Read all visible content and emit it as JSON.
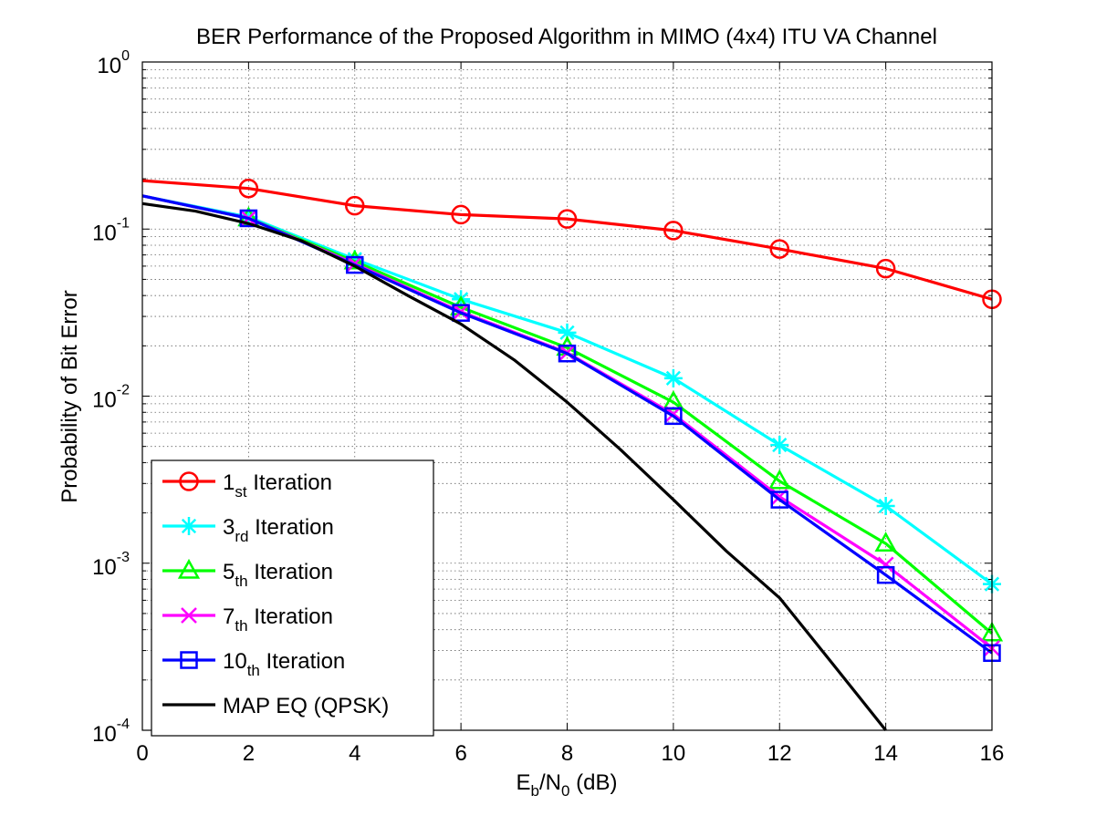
{
  "chart_data": {
    "type": "line",
    "title": "BER Performance of the Proposed Algorithm in MIMO (4x4) ITU VA Channel",
    "xlabel": {
      "base": "E",
      "sub1": "b",
      "mid": "/N",
      "sub2": "0",
      "tail": " (dB)"
    },
    "ylabel": "Probability of Bit Error",
    "xlim": [
      0,
      16
    ],
    "ylim": [
      0.0001,
      1
    ],
    "yscale": "log",
    "grid": true,
    "legend_position": "bottom-left",
    "x_ticks": [
      {
        "value": 0,
        "label": "0"
      },
      {
        "value": 2,
        "label": "2"
      },
      {
        "value": 4,
        "label": "4"
      },
      {
        "value": 6,
        "label": "6"
      },
      {
        "value": 8,
        "label": "8"
      },
      {
        "value": 10,
        "label": "10"
      },
      {
        "value": 12,
        "label": "12"
      },
      {
        "value": 14,
        "label": "14"
      },
      {
        "value": 16,
        "label": "16"
      }
    ],
    "y_ticks": [
      {
        "value": 1,
        "base": "10",
        "exp": "0"
      },
      {
        "value": 0.1,
        "base": "10",
        "exp": "-1"
      },
      {
        "value": 0.01,
        "base": "10",
        "exp": "-2"
      },
      {
        "value": 0.001,
        "base": "10",
        "exp": "-3"
      },
      {
        "value": 0.0001,
        "base": "10",
        "exp": "-4"
      }
    ],
    "series": [
      {
        "legend_main": "1",
        "legend_sub": "st",
        "legend_tail": " Iteration",
        "color": "#ff0000",
        "marker": "circle",
        "x": [
          0,
          2,
          4,
          6,
          8,
          10,
          12,
          14,
          16
        ],
        "y": [
          0.195,
          0.175,
          0.138,
          0.122,
          0.115,
          0.098,
          0.076,
          0.058,
          0.038
        ],
        "marker_x": [
          2,
          4,
          6,
          8,
          10,
          12,
          14,
          16
        ]
      },
      {
        "legend_main": "3",
        "legend_sub": "rd",
        "legend_tail": " Iteration",
        "color": "#00ffff",
        "marker": "asterisk",
        "x": [
          0,
          2,
          4,
          6,
          8,
          10,
          12,
          14,
          16
        ],
        "y": [
          0.158,
          0.118,
          0.066,
          0.038,
          0.024,
          0.0128,
          0.0051,
          0.0022,
          0.00075
        ],
        "marker_x": [
          2,
          4,
          6,
          8,
          10,
          12,
          14,
          16
        ]
      },
      {
        "legend_main": "5",
        "legend_sub": "th",
        "legend_tail": " Iteration",
        "color": "#00ff00",
        "marker": "triangle",
        "x": [
          0,
          2,
          4,
          6,
          8,
          10,
          12,
          14,
          16
        ],
        "y": [
          0.158,
          0.116,
          0.064,
          0.034,
          0.0195,
          0.0092,
          0.0031,
          0.00131,
          0.00038
        ],
        "marker_x": [
          2,
          4,
          6,
          8,
          10,
          12,
          14,
          16
        ]
      },
      {
        "legend_main": "7",
        "legend_sub": "th",
        "legend_tail": " Iteration",
        "color": "#ff00ff",
        "marker": "x",
        "x": [
          0,
          2,
          4,
          6,
          8,
          10,
          12,
          14,
          16
        ],
        "y": [
          0.158,
          0.116,
          0.062,
          0.032,
          0.0182,
          0.0078,
          0.0025,
          0.00098,
          0.00031
        ],
        "marker_x": [
          2,
          4,
          6,
          8,
          10,
          12,
          14,
          16
        ]
      },
      {
        "legend_main": "10",
        "legend_sub": "th",
        "legend_tail": " Iteration",
        "color": "#0000ff",
        "marker": "square",
        "x": [
          0,
          2,
          4,
          6,
          8,
          10,
          12,
          14,
          16
        ],
        "y": [
          0.158,
          0.116,
          0.061,
          0.0315,
          0.018,
          0.0076,
          0.0024,
          0.00085,
          0.00029
        ],
        "marker_x": [
          2,
          4,
          6,
          8,
          10,
          12,
          14,
          16
        ]
      },
      {
        "legend_main": "MAP EQ (QPSK)",
        "legend_sub": "",
        "legend_tail": "",
        "color": "#000000",
        "marker": "none",
        "x": [
          0,
          1,
          2,
          3,
          4,
          5,
          6,
          7,
          8,
          9,
          10,
          11,
          12,
          13,
          14
        ],
        "y": [
          0.142,
          0.128,
          0.108,
          0.085,
          0.06,
          0.04,
          0.027,
          0.0165,
          0.0092,
          0.0048,
          0.0024,
          0.00118,
          0.00062,
          0.00025,
          0.0001
        ],
        "marker_x": []
      }
    ]
  }
}
